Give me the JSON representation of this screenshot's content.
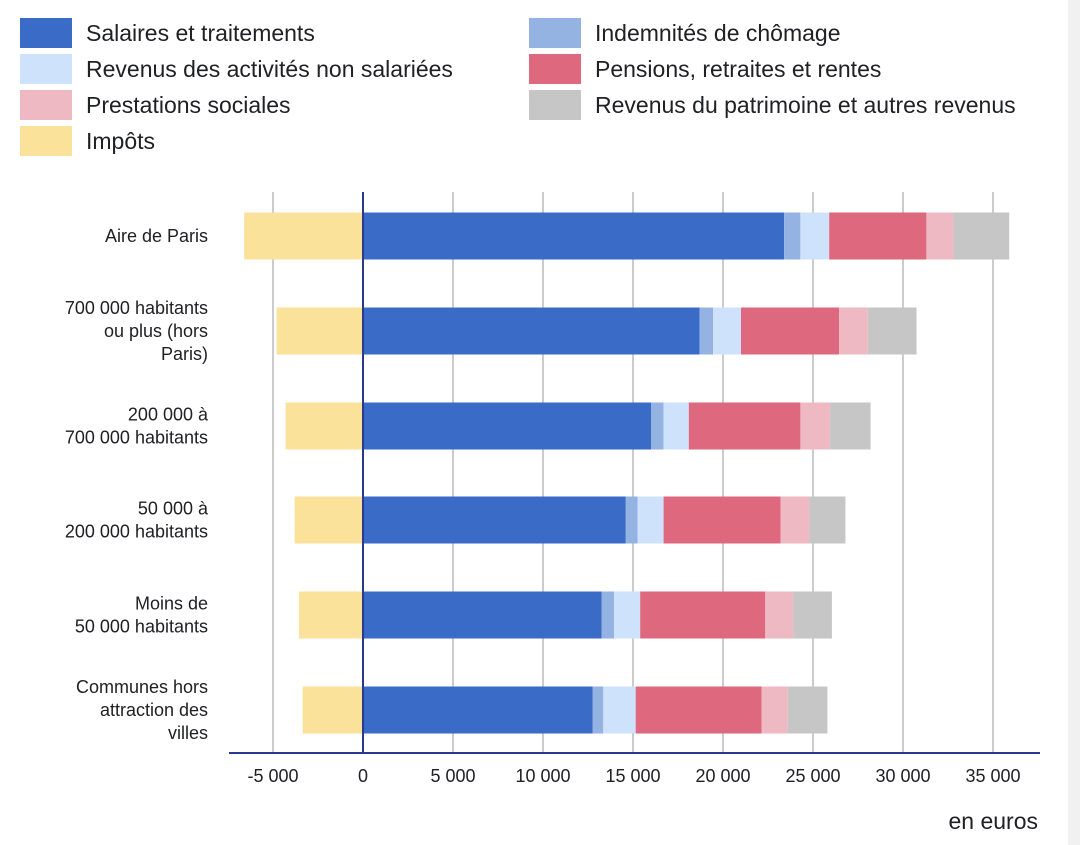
{
  "colors": {
    "salaires": "#3a6bc6",
    "chomage": "#94b3e3",
    "non_salariees": "#cfe2fb",
    "pensions": "#de687e",
    "prestations": "#eeb9c2",
    "patrimoine": "#c6c6c6",
    "impots": "#fbe29a",
    "axis": "#2a3990",
    "grid": "#9a9a9a"
  },
  "legend": [
    {
      "label": "Salaires et traitements",
      "color_key": "salaires"
    },
    {
      "label": "Indemnités de chômage",
      "color_key": "chomage"
    },
    {
      "label": "Revenus des activités non salariées",
      "color_key": "non_salariees"
    },
    {
      "label": "Pensions, retraites et rentes",
      "color_key": "pensions"
    },
    {
      "label": "Prestations sociales",
      "color_key": "prestations"
    },
    {
      "label": "Revenus du patrimoine et autres revenus",
      "color_key": "patrimoine"
    },
    {
      "label": "Impôts",
      "color_key": "impots"
    }
  ],
  "chart_data": {
    "type": "bar",
    "orientation": "horizontal",
    "stacked": true,
    "categories": [
      "Aire de Paris",
      "700 000 habitants ou plus (hors Paris)",
      "200 000 à 700 000 habitants",
      "50 000 à 200 000 habitants",
      "Moins de 50 000 habitants",
      "Communes hors attraction des villes"
    ],
    "category_lines": [
      [
        "Aire de Paris"
      ],
      [
        "700 000 habitants",
        "ou plus (hors",
        "Paris)"
      ],
      [
        "200 000 à",
        "700 000 habitants"
      ],
      [
        "50 000 à",
        "200 000 habitants"
      ],
      [
        "Moins de",
        "50 000 habitants"
      ],
      [
        "Communes hors",
        "attraction des",
        "villes"
      ]
    ],
    "series": [
      {
        "name": "Impôts",
        "color_key": "impots",
        "values": [
          -6600,
          -4800,
          -4300,
          -3800,
          -3550,
          -3350
        ]
      },
      {
        "name": "Salaires et traitements",
        "color_key": "salaires",
        "values": [
          23400,
          18700,
          16000,
          14600,
          13250,
          12750
        ]
      },
      {
        "name": "Indemnités de chômage",
        "color_key": "chomage",
        "values": [
          900,
          750,
          700,
          650,
          700,
          600
        ]
      },
      {
        "name": "Revenus des activités non salariées",
        "color_key": "non_salariees",
        "values": [
          1600,
          1550,
          1400,
          1450,
          1450,
          1800
        ]
      },
      {
        "name": "Pensions, retraites et rentes",
        "color_key": "pensions",
        "values": [
          5400,
          5450,
          6200,
          6500,
          6950,
          7000
        ]
      },
      {
        "name": "Prestations sociales",
        "color_key": "prestations",
        "values": [
          1500,
          1600,
          1650,
          1600,
          1550,
          1450
        ]
      },
      {
        "name": "Revenus du patrimoine et autres revenus",
        "color_key": "patrimoine",
        "values": [
          3100,
          2700,
          2250,
          2000,
          2150,
          2200
        ]
      }
    ],
    "xlim": [
      -7500,
      37500
    ],
    "x_ticks": [
      -5000,
      0,
      5000,
      10000,
      15000,
      20000,
      25000,
      30000,
      35000
    ],
    "x_tick_labels": [
      "-5 000",
      "0",
      "5 000",
      "10 000",
      "15 000",
      "20 000",
      "25 000",
      "30 000",
      "35 000"
    ],
    "xlabel": "en euros",
    "grid": true,
    "legend_position": "top"
  }
}
